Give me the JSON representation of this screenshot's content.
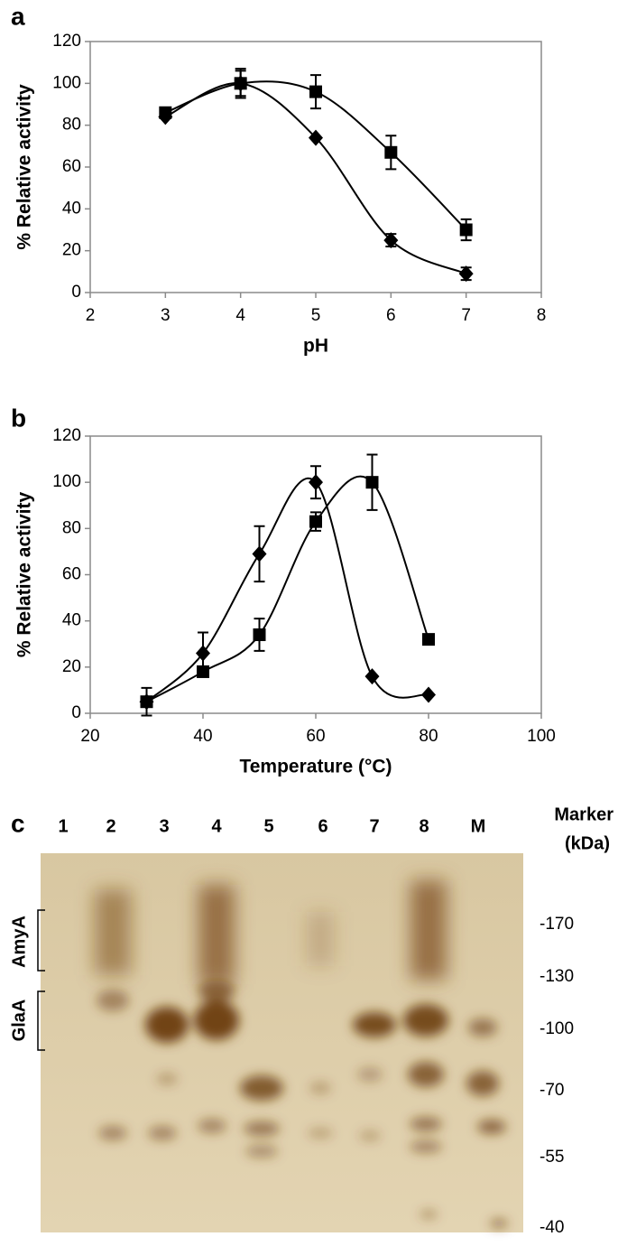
{
  "chart_data": [
    {
      "type": "line",
      "label": "a",
      "x_label": "pH",
      "y_label": "% Relative activity",
      "xlim": [
        2,
        8
      ],
      "xticks": [
        2,
        3,
        4,
        5,
        6,
        7,
        8
      ],
      "ylim": [
        0,
        120
      ],
      "yticks": [
        0,
        20,
        40,
        60,
        80,
        100,
        120
      ],
      "x": [
        3,
        4,
        5,
        6,
        7
      ],
      "series": [
        {
          "marker": "square",
          "color": "#000000",
          "values": [
            86,
            100,
            96,
            67,
            30
          ],
          "errors": [
            null,
            7,
            8,
            8,
            5
          ]
        },
        {
          "marker": "diamond",
          "color": "#000000",
          "values": [
            84,
            100,
            74,
            25,
            9
          ],
          "errors": [
            null,
            6,
            null,
            3,
            3
          ]
        }
      ]
    },
    {
      "type": "line",
      "label": "b",
      "x_label": "Temperature (°C)",
      "y_label": "% Relative activity",
      "xlim": [
        20,
        100
      ],
      "xticks": [
        20,
        40,
        60,
        80,
        100
      ],
      "ylim": [
        0,
        120
      ],
      "yticks": [
        0,
        20,
        40,
        60,
        80,
        100,
        120
      ],
      "x": [
        30,
        40,
        50,
        60,
        70,
        80
      ],
      "series": [
        {
          "marker": "square",
          "color": "#000000",
          "values": [
            5,
            18,
            34,
            83,
            100,
            32
          ],
          "errors": [
            null,
            null,
            7,
            4,
            12,
            null
          ]
        },
        {
          "marker": "diamond",
          "color": "#000000",
          "values": [
            5,
            26,
            69,
            100,
            16,
            8
          ],
          "errors": [
            6,
            9,
            12,
            7,
            null,
            null
          ]
        }
      ]
    }
  ],
  "gel": {
    "label": "c",
    "lanes": [
      "1",
      "2",
      "3",
      "4",
      "5",
      "6",
      "7",
      "8",
      "M"
    ],
    "marker_title": "Marker",
    "marker_unit": "(kDa)",
    "markers": [
      "-170",
      "-130",
      "-100",
      "-70",
      "-55",
      "-40"
    ],
    "bands": [
      "AmyA",
      "GlaA"
    ]
  }
}
